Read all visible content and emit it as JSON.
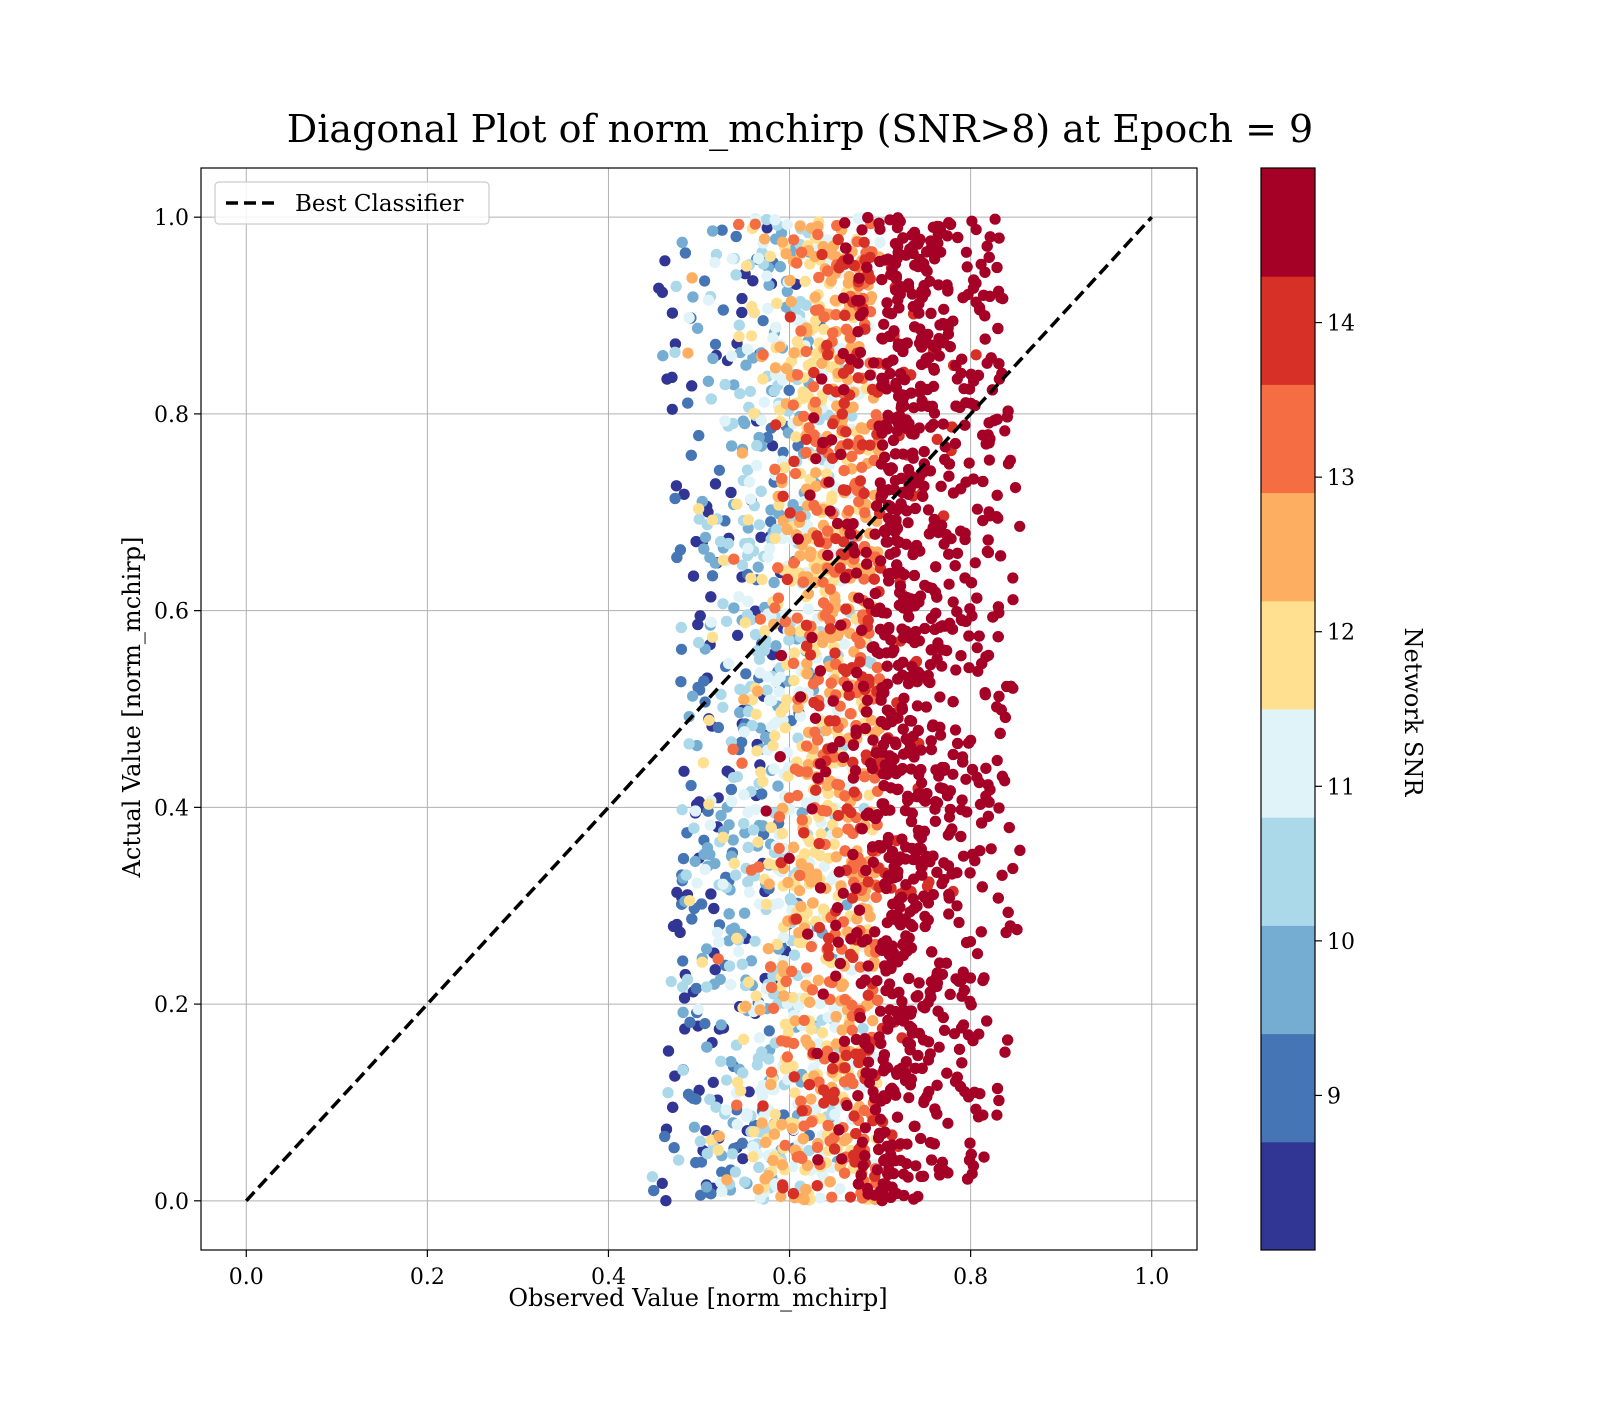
{
  "chart_data": {
    "type": "scatter",
    "title": "Diagonal Plot of norm_mchirp (SNR>8) at Epoch = 9",
    "xlabel": "Observed Value [norm_mchirp]",
    "ylabel": "Actual Value [norm_mchirp]",
    "xlim": [
      -0.05,
      1.05
    ],
    "ylim": [
      -0.05,
      1.05
    ],
    "x_ticks": [
      "0.0",
      "0.2",
      "0.4",
      "0.6",
      "0.8",
      "1.0"
    ],
    "y_ticks": [
      "0.0",
      "0.2",
      "0.4",
      "0.6",
      "0.8",
      "1.0"
    ],
    "grid": true,
    "legend": {
      "placement": "upper-left",
      "entries": [
        {
          "label": "Best Classifier",
          "style": "dashed",
          "color": "#000000"
        }
      ]
    },
    "reference_line": {
      "label": "Best Classifier",
      "x": [
        0.0,
        1.0
      ],
      "y": [
        0.0,
        1.0
      ]
    },
    "colorbar": {
      "label": "Network SNR",
      "range": [
        8.0,
        15.0
      ],
      "tick_labels": [
        "9",
        "10",
        "11",
        "12",
        "13",
        "14"
      ],
      "tick_values": [
        9,
        10,
        11,
        12,
        13,
        14
      ],
      "colors": [
        "#313695",
        "#4575b4",
        "#74add1",
        "#abd9e9",
        "#e0f3f8",
        "#fee090",
        "#fdae61",
        "#f46d43",
        "#d73027",
        "#a50026"
      ]
    },
    "point_cloud": {
      "description_of_distribution": "dense cloud; x between ~0.42 and ~0.87 over y from 0.0 to 1.0; high SNR points concentrated at larger x",
      "x_range": [
        0.42,
        0.87
      ],
      "y_range": [
        0.0,
        1.0
      ]
    }
  }
}
